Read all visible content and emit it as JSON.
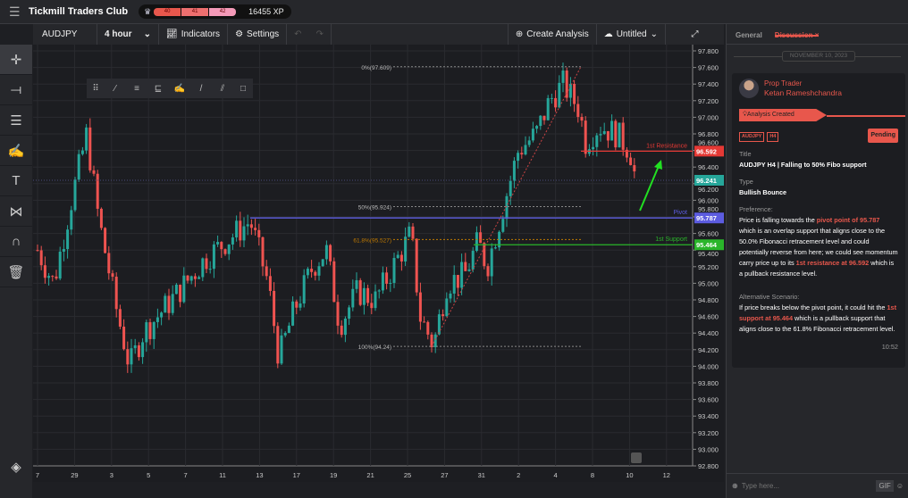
{
  "app": {
    "title": "Tickmill Traders Club",
    "levels": [
      "40",
      "41",
      "42"
    ],
    "xp": "16455 XP"
  },
  "toolbar": {
    "symbol": "AUDJPY",
    "timeframe": "4 hour",
    "indicators": "Indicators",
    "settings": "Settings",
    "create": "Create Analysis",
    "untitled": "Untitled"
  },
  "colors": {
    "up": "#26a69a",
    "down": "#ef5350",
    "accent": "#e8574c",
    "resistance": "#e53935",
    "pivot": "#5c5ce0",
    "support": "#2ab52a",
    "arrow": "#22e022"
  },
  "chart": {
    "price_ticks": [
      "97.800",
      "97.600",
      "97.400",
      "97.200",
      "97.000",
      "96.800",
      "96.600",
      "96.400",
      "96.200",
      "96.000",
      "95.800",
      "95.600",
      "95.400",
      "95.200",
      "95.000",
      "94.800",
      "94.600",
      "94.400",
      "94.200",
      "94.000",
      "93.800",
      "93.600",
      "93.400",
      "93.200",
      "93.000",
      "92.800"
    ],
    "date_ticks": [
      "7",
      "29",
      "3",
      "5",
      "7",
      "11",
      "13",
      "17",
      "19",
      "21",
      "25",
      "27",
      "31",
      "2",
      "4",
      "8",
      "10",
      "12"
    ],
    "fib": [
      {
        "label": "0%(97.609)",
        "price": 97.609
      },
      {
        "label": "50%(95.924)",
        "price": 95.924
      },
      {
        "label": "61.8%(95.527)",
        "price": 95.527
      },
      {
        "label": "100%(94.24)",
        "price": 94.24
      }
    ],
    "levels": [
      {
        "label": "1st Resistance",
        "price": 96.592,
        "tag": "96.592"
      },
      {
        "label": "Pivot",
        "price": 95.787,
        "tag": "95.787"
      },
      {
        "label": "1st Support",
        "price": 95.464,
        "tag": "95.464"
      }
    ],
    "current_price": "96.241",
    "price_path": [
      95.4,
      95.0,
      96.0,
      96.8,
      95.8,
      94.7,
      94.0,
      94.4,
      94.9,
      95.3,
      95.75,
      95.0,
      94.1,
      94.7,
      95.2,
      95.4,
      94.5,
      94.9,
      94.8,
      95.3,
      95.6,
      94.6,
      94.25,
      95.0,
      95.1,
      95.5,
      95.2,
      95.8,
      96.6,
      96.8,
      97.2,
      97.4,
      97.1,
      96.7,
      96.9,
      96.8,
      96.6,
      96.2
    ]
  },
  "panel": {
    "tabs": [
      "General",
      "Discussion"
    ],
    "date": "NOVEMBER 10, 2023",
    "role": "Prop Trader",
    "name": "Ketan Rameshchandra",
    "event": "Analysis Created",
    "pills": [
      "AUDJPY",
      "H4"
    ],
    "status": "Pending",
    "title_label": "Title",
    "title": "AUDJPY H4 | Falling to 50% Fibo support",
    "type_label": "Type",
    "type": "Bullish Bounce",
    "pref_label": "Preference:",
    "pref_1": "Price is falling towards the ",
    "pref_hl1": "pivot point of 95.787",
    "pref_2": " which is an overlap support that aligns close to the 50.0% Fibonacci retracement level and could potentially reverse from here; we could see momentum carry price up to its ",
    "pref_hl2": "1st resistance at 96.592",
    "pref_3": " which is a pullback resistance level.",
    "alt_label": "Alternative Scenario:",
    "alt_1": "If price breaks below the pivot point, it could hit the ",
    "alt_hl": "1st support at 95.464",
    "alt_2": " which is a pullback support that aligns close to the 61.8% Fibonacci retracement level.",
    "time": "10:52",
    "input_placeholder": "Type here...",
    "gif": "GIF"
  }
}
